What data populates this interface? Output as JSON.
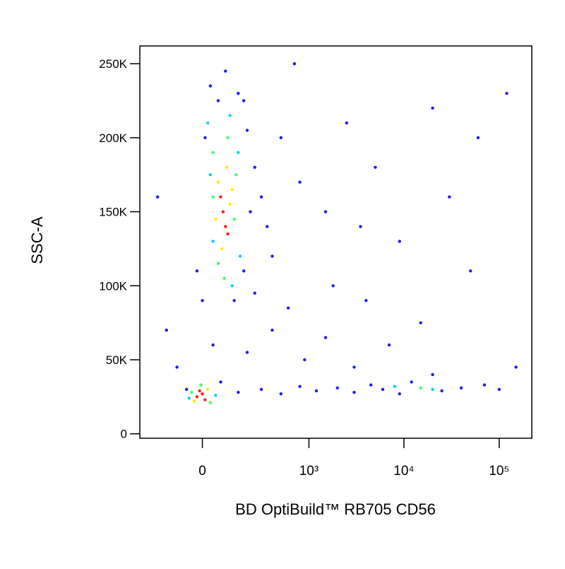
{
  "chart_data": {
    "type": "scatter",
    "x_label": "BD OptiBuild™ RB705 CD56",
    "y_label": "SSC-A",
    "xscale": "biexponential",
    "xlim": [
      -330,
      220000
    ],
    "ylim": [
      -3000,
      262000
    ],
    "xticks": [
      0,
      {
        "value": 1000,
        "label": "10³"
      },
      {
        "value": 10000,
        "label": "10⁴"
      },
      {
        "value": 100000,
        "label": "10⁵"
      }
    ],
    "yticks": [
      0,
      {
        "value": 50000,
        "label": "50K"
      },
      {
        "value": 100000,
        "label": "100K"
      },
      {
        "value": 150000,
        "label": "150K"
      },
      {
        "value": 200000,
        "label": "200K"
      },
      {
        "value": 250000,
        "label": "250K"
      }
    ],
    "series": [
      {
        "color": "#1a1aff",
        "x": [
          -60,
          70,
          150,
          300,
          500,
          800,
          1200,
          2000,
          3000,
          4500,
          6000,
          9000,
          12000,
          25000,
          40000,
          70000,
          100000,
          -100,
          40,
          200,
          400,
          900,
          1500,
          3000,
          7000,
          20000,
          150,
          90,
          30,
          200,
          250,
          180,
          300,
          350,
          400,
          250,
          500,
          800,
          1500,
          2500,
          5000,
          9000,
          20000,
          60000,
          120000,
          -200,
          -150,
          600,
          1800,
          4000,
          15000,
          50000,
          150000,
          0,
          -20,
          130,
          60,
          10,
          180,
          220,
          30000,
          700,
          3500
        ],
        "values": [
          30000,
          35000,
          28000,
          30000,
          27000,
          32000,
          29000,
          31000,
          28000,
          33000,
          30000,
          27000,
          35000,
          29000,
          31000,
          33000,
          30000,
          45000,
          60000,
          55000,
          70000,
          50000,
          65000,
          45000,
          60000,
          40000,
          230000,
          245000,
          235000,
          205000,
          180000,
          225000,
          160000,
          140000,
          120000,
          95000,
          200000,
          170000,
          150000,
          210000,
          180000,
          130000,
          220000,
          200000,
          230000,
          160000,
          70000,
          85000,
          100000,
          90000,
          75000,
          110000,
          45000,
          90000,
          110000,
          90000,
          225000,
          200000,
          110000,
          150000,
          160000,
          250000,
          140000
        ]
      },
      {
        "color": "#00d0ff",
        "x": [
          20,
          150,
          40,
          160,
          110,
          -50,
          50,
          8000,
          20000,
          120,
          30
        ],
        "values": [
          210000,
          190000,
          130000,
          120000,
          215000,
          24000,
          26000,
          32000,
          30000,
          100000,
          175000
        ]
      },
      {
        "color": "#40ff60",
        "x": [
          -40,
          30,
          40,
          130,
          60,
          100,
          40,
          140,
          85,
          15000,
          -5
        ],
        "values": [
          28000,
          21000,
          190000,
          145000,
          115000,
          200000,
          160000,
          175000,
          105000,
          31000,
          33000
        ]
      },
      {
        "color": "#ffee00",
        "x": [
          -30,
          20,
          60,
          110,
          75,
          95,
          50,
          120
        ],
        "values": [
          22000,
          30000,
          170000,
          155000,
          125000,
          180000,
          145000,
          165000
        ]
      },
      {
        "color": "#ff2000",
        "x": [
          -20,
          0,
          10,
          -10,
          80,
          90,
          70,
          100
        ],
        "values": [
          25000,
          27000,
          23000,
          29000,
          150000,
          140000,
          160000,
          135000
        ]
      }
    ]
  }
}
